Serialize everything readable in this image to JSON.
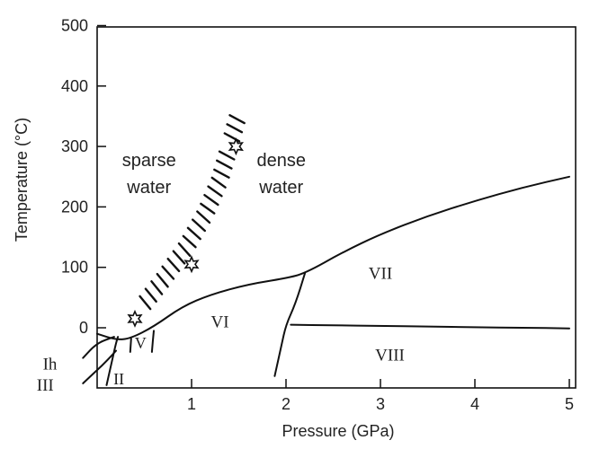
{
  "chart_data": {
    "type": "phase-diagram",
    "title": "",
    "xlabel": "Pressure (GPa)",
    "ylabel": "Temperature (°C)",
    "xlim": [
      0,
      5
    ],
    "ylim": [
      -100,
      500
    ],
    "x_ticks": [
      {
        "value": 1,
        "label": "1"
      },
      {
        "value": 2,
        "label": "2"
      },
      {
        "value": 3,
        "label": "3"
      },
      {
        "value": 4,
        "label": "4"
      },
      {
        "value": 5,
        "label": "5"
      }
    ],
    "y_ticks": [
      {
        "value": 0,
        "label": "0"
      },
      {
        "value": 100,
        "label": "100"
      },
      {
        "value": 200,
        "label": "200"
      },
      {
        "value": 300,
        "label": "300"
      },
      {
        "value": 400,
        "label": "400"
      },
      {
        "value": 500,
        "label": "500"
      }
    ],
    "regions": [
      {
        "id": "sparse",
        "lines": [
          "sparse",
          "water"
        ],
        "x": 0.55,
        "y": 250
      },
      {
        "id": "dense",
        "lines": [
          "dense",
          "water"
        ],
        "x": 1.95,
        "y": 250
      }
    ],
    "phases": [
      {
        "id": "VII",
        "label": "VII",
        "x": 3.0,
        "y": 90
      },
      {
        "id": "VI",
        "label": "VI",
        "x": 1.3,
        "y": 10
      },
      {
        "id": "VIII",
        "label": "VIII",
        "x": 3.1,
        "y": -45
      },
      {
        "id": "V",
        "label": "V",
        "x": 0.46,
        "y": -25,
        "small": true
      },
      {
        "id": "II",
        "label": "II",
        "x": 0.23,
        "y": -85,
        "small": true
      },
      {
        "id": "Ih",
        "label": "Ih",
        "x": -0.5,
        "y": -60,
        "outside": true
      },
      {
        "id": "III",
        "label": "III",
        "x": -0.55,
        "y": -95,
        "outside": true
      }
    ],
    "boundaries": [
      {
        "id": "melting-curve",
        "points": [
          [
            0.0,
            -10
          ],
          [
            0.2,
            -20
          ],
          [
            0.35,
            -18
          ],
          [
            0.6,
            2
          ],
          [
            0.9,
            35
          ],
          [
            1.2,
            55
          ],
          [
            1.6,
            72
          ],
          [
            2.0,
            82
          ],
          [
            2.2,
            90
          ],
          [
            2.6,
            125
          ],
          [
            3.0,
            155
          ],
          [
            3.5,
            185
          ],
          [
            4.0,
            210
          ],
          [
            4.5,
            232
          ],
          [
            5.0,
            250
          ]
        ]
      },
      {
        "id": "VI-VII",
        "points": [
          [
            2.2,
            90
          ],
          [
            2.1,
            40
          ],
          [
            2.0,
            5
          ],
          [
            1.95,
            -30
          ],
          [
            1.88,
            -80
          ]
        ]
      },
      {
        "id": "VII-VIII",
        "points": [
          [
            2.05,
            5
          ],
          [
            2.5,
            4
          ],
          [
            3.0,
            3
          ],
          [
            3.5,
            2
          ],
          [
            4.0,
            1
          ],
          [
            4.5,
            0
          ],
          [
            5.0,
            -1
          ]
        ]
      },
      {
        "id": "Ih-outer",
        "points": [
          [
            -0.15,
            -50
          ],
          [
            0.0,
            -25
          ],
          [
            0.18,
            -15
          ]
        ]
      },
      {
        "id": "III-outer",
        "points": [
          [
            -0.15,
            -92
          ],
          [
            0.0,
            -70
          ],
          [
            0.1,
            -55
          ],
          [
            0.2,
            -38
          ]
        ]
      },
      {
        "id": "II-left",
        "points": [
          [
            0.1,
            -95
          ],
          [
            0.15,
            -60
          ],
          [
            0.2,
            -25
          ],
          [
            0.22,
            -15
          ]
        ]
      },
      {
        "id": "V-left",
        "points": [
          [
            0.35,
            -40
          ],
          [
            0.36,
            -18
          ]
        ]
      },
      {
        "id": "V-right",
        "points": [
          [
            0.58,
            -40
          ],
          [
            0.6,
            -5
          ]
        ]
      }
    ],
    "transition_band": {
      "description": "hatched band separating sparse water from dense water",
      "points": [
        [
          0.3,
          0
        ],
        [
          0.5,
          40
        ],
        [
          0.7,
          80
        ],
        [
          0.95,
          135
        ],
        [
          1.15,
          190
        ],
        [
          1.3,
          245
        ],
        [
          1.4,
          300
        ],
        [
          1.5,
          355
        ]
      ],
      "stars": [
        [
          0.4,
          15
        ],
        [
          1.0,
          105
        ],
        [
          1.47,
          300
        ]
      ]
    }
  }
}
